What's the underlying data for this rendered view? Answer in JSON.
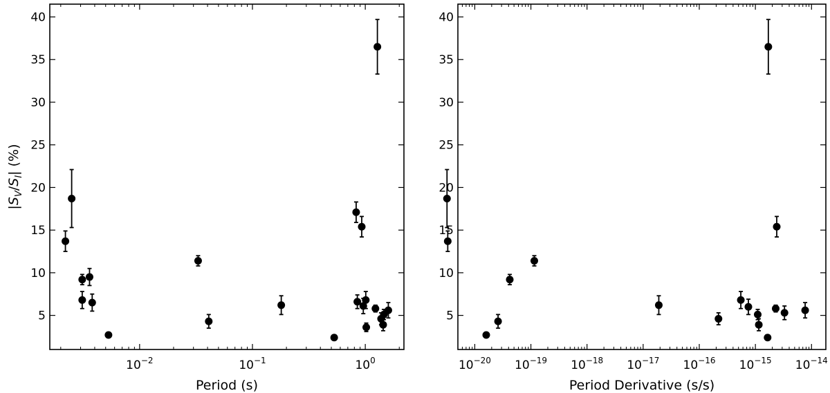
{
  "chart_data": [
    {
      "type": "scatter",
      "title": "",
      "xlabel": "Period (s)",
      "ylabel": "|S_V/S_I| (%)",
      "xscale": "log",
      "xlim": [
        0.0016,
        2.2
      ],
      "ylim": [
        1.0,
        41.5
      ],
      "grid": false,
      "legend": "none",
      "marker_color": "#000000",
      "x_ticks": [
        {
          "value": 0.01,
          "label": "10^-2"
        },
        {
          "value": 0.1,
          "label": "10^-1"
        },
        {
          "value": 1,
          "label": "10^0"
        }
      ],
      "y_ticks": [
        5,
        10,
        15,
        20,
        25,
        30,
        35,
        40
      ],
      "series": [
        {
          "points": [
            {
              "x": 0.0022,
              "y": 13.7,
              "err": 1.2
            },
            {
              "x": 0.0025,
              "y": 18.7,
              "err": 3.4
            },
            {
              "x": 0.0031,
              "y": 9.2,
              "err": 0.6
            },
            {
              "x": 0.0031,
              "y": 6.8,
              "err": 1.0
            },
            {
              "x": 0.0036,
              "y": 9.5,
              "err": 1.0
            },
            {
              "x": 0.0038,
              "y": 6.5,
              "err": 1.0
            },
            {
              "x": 0.0053,
              "y": 2.7,
              "err": 0
            },
            {
              "x": 0.033,
              "y": 11.4,
              "err": 0.6
            },
            {
              "x": 0.041,
              "y": 4.3,
              "err": 0.8
            },
            {
              "x": 0.18,
              "y": 6.2,
              "err": 1.1
            },
            {
              "x": 0.53,
              "y": 2.4,
              "err": 0
            },
            {
              "x": 0.83,
              "y": 17.1,
              "err": 1.2
            },
            {
              "x": 0.85,
              "y": 6.6,
              "err": 0.8
            },
            {
              "x": 0.93,
              "y": 15.4,
              "err": 1.2
            },
            {
              "x": 0.96,
              "y": 6.1,
              "err": 0.9
            },
            {
              "x": 1.01,
              "y": 6.8,
              "err": 1.0
            },
            {
              "x": 1.02,
              "y": 3.6,
              "err": 0.5
            },
            {
              "x": 1.23,
              "y": 5.8,
              "err": 0.4
            },
            {
              "x": 1.28,
              "y": 36.5,
              "err": 3.2
            },
            {
              "x": 1.38,
              "y": 4.6,
              "err": 0.7
            },
            {
              "x": 1.44,
              "y": 3.9,
              "err": 0.7
            },
            {
              "x": 1.46,
              "y": 5.1,
              "err": 0.6
            },
            {
              "x": 1.6,
              "y": 5.6,
              "err": 0.9
            }
          ]
        }
      ]
    },
    {
      "type": "scatter",
      "title": "",
      "xlabel": "Period Derivative (s/s)",
      "ylabel": "",
      "xscale": "log",
      "xlim": [
        5e-21,
        1.8e-14
      ],
      "ylim": [
        1.0,
        41.5
      ],
      "grid": false,
      "legend": "none",
      "marker_color": "#000000",
      "x_ticks": [
        {
          "value": 1e-20,
          "label": "10^-20"
        },
        {
          "value": 1e-19,
          "label": "10^-19"
        },
        {
          "value": 1e-18,
          "label": "10^-18"
        },
        {
          "value": 1e-17,
          "label": "10^-17"
        },
        {
          "value": 1e-16,
          "label": "10^-16"
        },
        {
          "value": 1e-15,
          "label": "10^-15"
        },
        {
          "value": 1e-14,
          "label": "10^-14"
        }
      ],
      "y_ticks": [
        5,
        10,
        15,
        20,
        25,
        30,
        35,
        40
      ],
      "series": [
        {
          "points": [
            {
              "x": 3.2e-21,
              "y": 18.7,
              "err": 3.4
            },
            {
              "x": 3.3e-21,
              "y": 13.7,
              "err": 1.2
            },
            {
              "x": 1.6e-20,
              "y": 2.7,
              "err": 0
            },
            {
              "x": 2.6e-20,
              "y": 4.3,
              "err": 0.8
            },
            {
              "x": 4.2e-20,
              "y": 9.2,
              "err": 0.6
            },
            {
              "x": 1.15e-19,
              "y": 11.4,
              "err": 0.6
            },
            {
              "x": 1.9e-17,
              "y": 6.2,
              "err": 1.1
            },
            {
              "x": 2.2e-16,
              "y": 4.6,
              "err": 0.7
            },
            {
              "x": 5.5e-16,
              "y": 6.8,
              "err": 1.0
            },
            {
              "x": 7.5e-16,
              "y": 6.0,
              "err": 0.9
            },
            {
              "x": 1.1e-15,
              "y": 5.1,
              "err": 0.6
            },
            {
              "x": 1.15e-15,
              "y": 3.9,
              "err": 0.7
            },
            {
              "x": 1.65e-15,
              "y": 2.4,
              "err": 0
            },
            {
              "x": 1.7e-15,
              "y": 36.5,
              "err": 3.2
            },
            {
              "x": 2.3e-15,
              "y": 5.8,
              "err": 0.4
            },
            {
              "x": 2.4e-15,
              "y": 15.4,
              "err": 1.2
            },
            {
              "x": 3.3e-15,
              "y": 5.3,
              "err": 0.8
            },
            {
              "x": 7.7e-15,
              "y": 5.6,
              "err": 0.9
            }
          ]
        }
      ]
    }
  ]
}
